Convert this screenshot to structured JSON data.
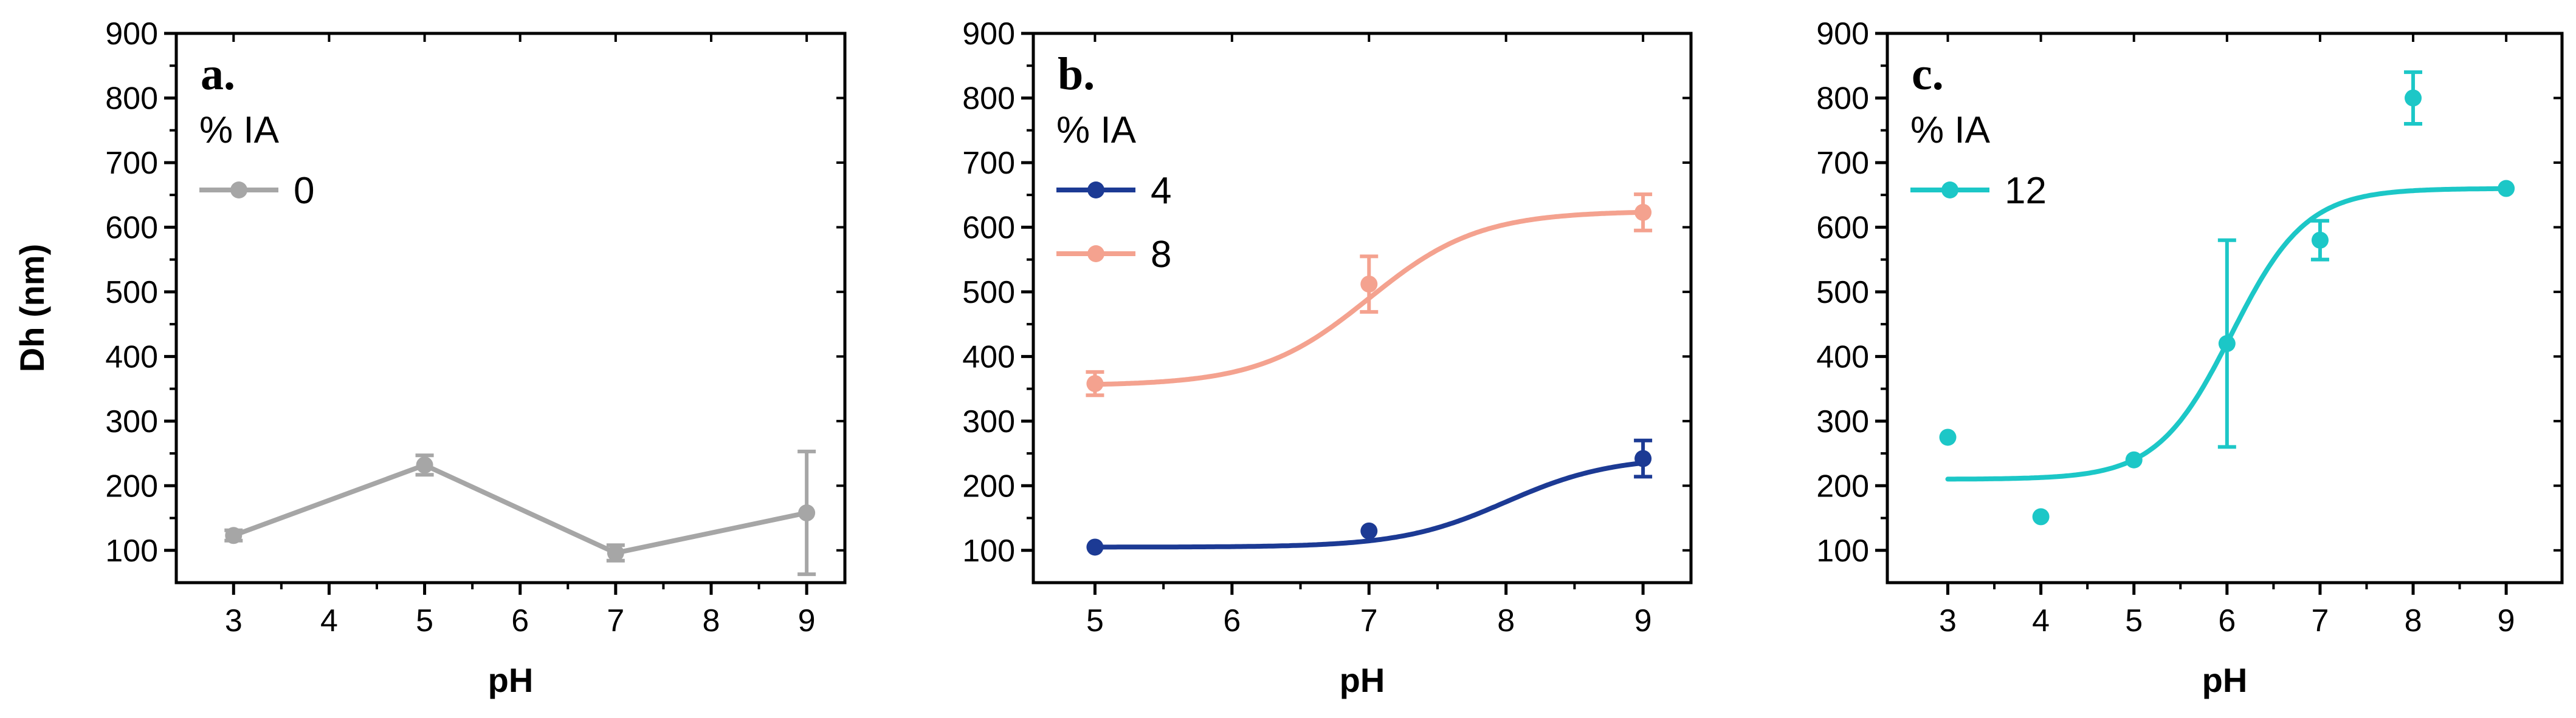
{
  "chart_data": [
    {
      "type": "line",
      "panel_label": "a.",
      "xlabel": "pH",
      "ylabel": "Dh (nm)",
      "xlim": [
        2.4,
        9.4
      ],
      "ylim": [
        50,
        900
      ],
      "xticks": [
        3,
        4,
        5,
        6,
        7,
        8,
        9
      ],
      "yticks": [
        100,
        200,
        300,
        400,
        500,
        600,
        700,
        800,
        900
      ],
      "legend_title": "% IA",
      "legend_position": "top-left",
      "series": [
        {
          "name": "0",
          "color": "#a6a6a6",
          "connect": "straight",
          "x": [
            3,
            5,
            7,
            9
          ],
          "y": [
            123,
            232,
            96,
            158
          ],
          "err": [
            8,
            15,
            12,
            95
          ]
        }
      ]
    },
    {
      "type": "line",
      "panel_label": "b.",
      "xlabel": "pH",
      "ylabel": "",
      "xlim": [
        4.55,
        9.35
      ],
      "ylim": [
        50,
        900
      ],
      "xticks": [
        5,
        6,
        7,
        8,
        9
      ],
      "yticks": [
        100,
        200,
        300,
        400,
        500,
        600,
        700,
        800,
        900
      ],
      "legend_title": "% IA",
      "legend_position": "top-left",
      "series": [
        {
          "name": "4",
          "color": "#1c3a94",
          "connect": "fit",
          "x": [
            5,
            7,
            9
          ],
          "y": [
            105,
            130,
            242
          ],
          "err": [
            0,
            0,
            28
          ],
          "fit": {
            "bottom": 105,
            "top": 245,
            "x0": 8.0,
            "k": 2.6
          }
        },
        {
          "name": "8",
          "color": "#f4a28f",
          "connect": "fit",
          "x": [
            5,
            7,
            9
          ],
          "y": [
            358,
            512,
            623
          ],
          "err": [
            18,
            43,
            28
          ],
          "fit": {
            "bottom": 355,
            "top": 625,
            "x0": 7.0,
            "k": 2.5
          }
        }
      ]
    },
    {
      "type": "line",
      "panel_label": "c.",
      "xlabel": "pH",
      "ylabel": "",
      "xlim": [
        2.35,
        9.6
      ],
      "ylim": [
        50,
        900
      ],
      "xticks": [
        3,
        4,
        5,
        6,
        7,
        8,
        9
      ],
      "yticks": [
        100,
        200,
        300,
        400,
        500,
        600,
        700,
        800,
        900
      ],
      "legend_title": "% IA",
      "legend_position": "top-left",
      "series": [
        {
          "name": "12",
          "color": "#1cc7c7",
          "connect": "fit",
          "x": [
            3,
            4,
            5,
            6,
            7,
            8,
            9
          ],
          "y": [
            275,
            152,
            240,
            420,
            580,
            800,
            660
          ],
          "err": [
            0,
            0,
            0,
            160,
            30,
            40,
            0
          ],
          "fit": {
            "bottom": 210,
            "top": 660,
            "x0": 6.05,
            "k": 2.5
          }
        }
      ]
    }
  ]
}
